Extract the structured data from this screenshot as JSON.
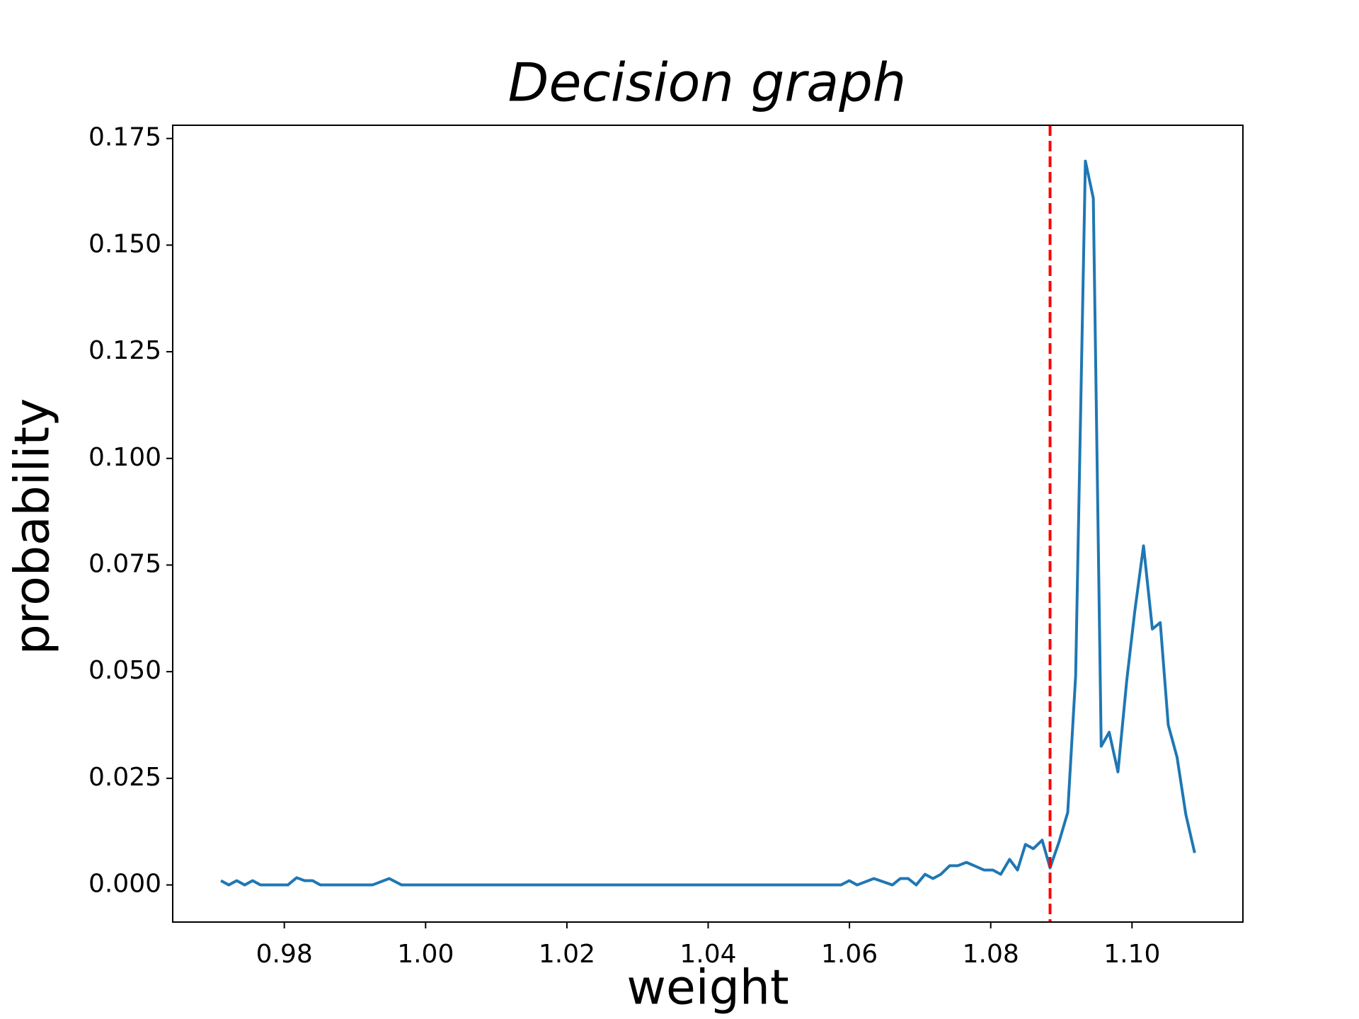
{
  "chart_data": {
    "type": "line",
    "title": "Decision graph",
    "x_label": "weight",
    "y_label": "probability",
    "x": [
      0.97102,
      0.97214,
      0.97326,
      0.97439,
      0.97551,
      0.97663,
      0.9805,
      0.98175,
      0.98287,
      0.984,
      0.98511,
      0.99248,
      0.99485,
      0.9966,
      1.0588,
      1.05997,
      1.06109,
      1.06346,
      1.06608,
      1.0672,
      1.06832,
      1.06945,
      1.0707,
      1.07182,
      1.07294,
      1.07419,
      1.07531,
      1.07656,
      1.07768,
      1.07905,
      1.0803,
      1.08142,
      1.08267,
      1.08379,
      1.08491,
      1.08603,
      1.08728,
      1.0884,
      1.08965,
      1.0909,
      1.09202,
      1.0934,
      1.09452,
      1.09564,
      1.09677,
      1.09801,
      1.09926,
      1.10038,
      1.10163,
      1.10288,
      1.104,
      1.10513,
      1.10637,
      1.10762,
      1.10887
    ],
    "series": [
      {
        "name": "probability",
        "color": "#1f77b4",
        "values": [
          0.001,
          0.0,
          0.001,
          0.0,
          0.001,
          0.0,
          0.0,
          0.0017,
          0.001,
          0.001,
          0.0,
          0.0,
          0.0015,
          0.0,
          0.0,
          0.001,
          0.0,
          0.0015,
          0.0,
          0.0015,
          0.0015,
          0.0,
          0.0025,
          0.0015,
          0.0025,
          0.0045,
          0.0045,
          0.0053,
          0.0045,
          0.0035,
          0.0035,
          0.0025,
          0.006,
          0.0035,
          0.0095,
          0.0085,
          0.0105,
          0.004,
          0.01,
          0.017,
          0.049,
          0.1697,
          0.161,
          0.0325,
          0.0358,
          0.0265,
          0.048,
          0.064,
          0.0795,
          0.06,
          0.0615,
          0.0375,
          0.03,
          0.0165,
          0.0075
        ]
      }
    ],
    "vline": {
      "x": 1.0884,
      "color": "#ff0000"
    },
    "xlim": [
      0.9642,
      1.1157
    ],
    "xticks": [
      {
        "value": 0.98,
        "label": "0.98"
      },
      {
        "value": 1.0,
        "label": "1.00"
      },
      {
        "value": 1.02,
        "label": "1.02"
      },
      {
        "value": 1.04,
        "label": "1.04"
      },
      {
        "value": 1.06,
        "label": "1.06"
      },
      {
        "value": 1.08,
        "label": "1.08"
      },
      {
        "value": 1.1,
        "label": "1.10"
      }
    ],
    "ylim": [
      -0.0087,
      0.1781
    ],
    "yticks": [
      {
        "value": 0,
        "label": "0.000"
      },
      {
        "value": 0.025,
        "label": "0.025"
      },
      {
        "value": 0.05,
        "label": "0.050"
      },
      {
        "value": 0.075,
        "label": "0.075"
      },
      {
        "value": 0.1,
        "label": "0.100"
      },
      {
        "value": 0.125,
        "label": "0.125"
      },
      {
        "value": 0.15,
        "label": "0.150"
      },
      {
        "value": 0.175,
        "label": "0.175"
      }
    ],
    "grid": false
  }
}
